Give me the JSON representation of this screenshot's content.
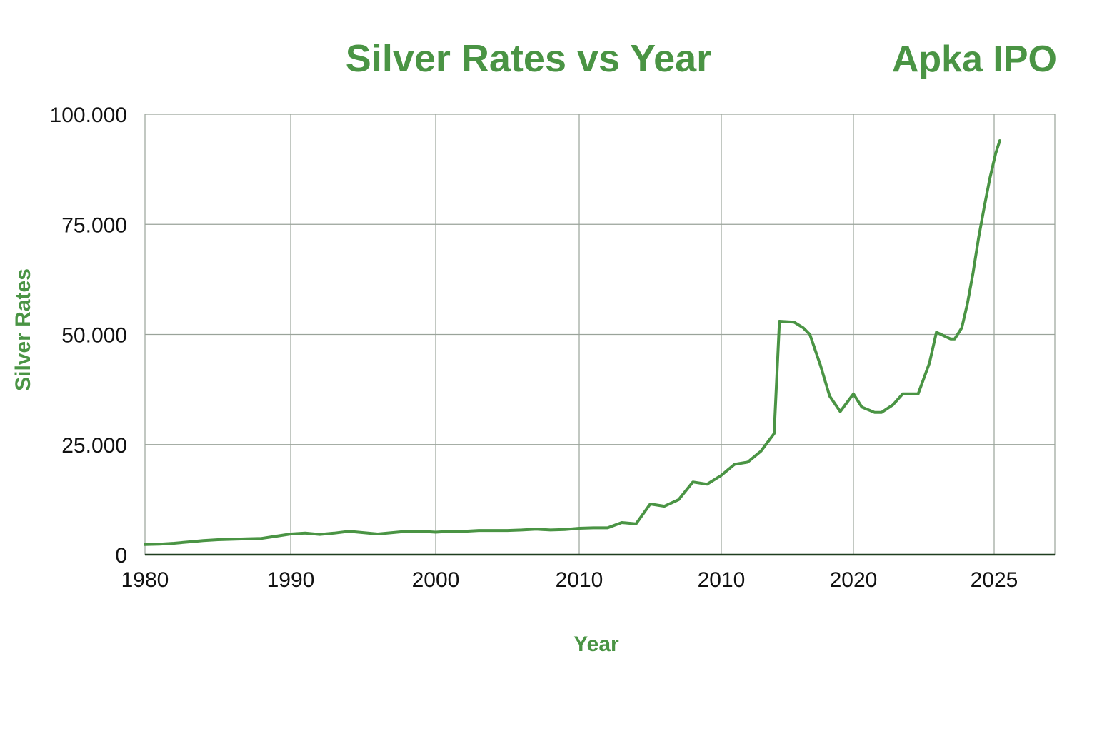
{
  "title": "Silver Rates vs Year",
  "brand": "Apka IPO",
  "colors": {
    "accent": "#4a9444",
    "line": "#4a9444",
    "grid": "#9aa39a",
    "axis": "#1f3d1f",
    "text": "#111111"
  },
  "chart_data": {
    "type": "line",
    "title": "Silver Rates vs Year",
    "xlabel": "Year",
    "ylabel": "Silver Rates",
    "x_tick_labels": [
      "1980",
      "1990",
      "2000",
      "2010",
      "2010",
      "2020",
      "2025"
    ],
    "y_tick_labels": [
      "0",
      "25.000",
      "50.000",
      "75.000",
      "100.000"
    ],
    "y_ticks": [
      0,
      25000,
      50000,
      75000,
      100000
    ],
    "ylim": [
      0,
      100000
    ],
    "grid": true,
    "legend": "none",
    "series": [
      {
        "values": [
          [
            0,
            2300
          ],
          [
            1,
            2400
          ],
          [
            2,
            2600
          ],
          [
            3,
            2900
          ],
          [
            4,
            3200
          ],
          [
            5,
            3400
          ],
          [
            6,
            3500
          ],
          [
            7,
            3600
          ],
          [
            8,
            3700
          ],
          [
            9,
            4200
          ],
          [
            10,
            4700
          ],
          [
            11,
            4900
          ],
          [
            12,
            4600
          ],
          [
            13,
            4900
          ],
          [
            14,
            5300
          ],
          [
            15,
            5000
          ],
          [
            16,
            4700
          ],
          [
            17,
            5000
          ],
          [
            18,
            5300
          ],
          [
            19,
            5300
          ],
          [
            20,
            5100
          ],
          [
            21,
            5300
          ],
          [
            22,
            5300
          ],
          [
            23,
            5500
          ],
          [
            24,
            5500
          ],
          [
            25,
            5500
          ],
          [
            26,
            5600
          ],
          [
            27,
            5800
          ],
          [
            28,
            5600
          ],
          [
            29,
            5700
          ],
          [
            30,
            6000
          ],
          [
            31,
            6100
          ],
          [
            32,
            6100
          ],
          [
            33,
            7300
          ],
          [
            34,
            7000
          ],
          [
            35,
            11500
          ],
          [
            36,
            11000
          ],
          [
            37,
            12500
          ],
          [
            38,
            16500
          ],
          [
            39,
            16000
          ],
          [
            40,
            18000
          ],
          [
            41,
            20500
          ],
          [
            42,
            21000
          ],
          [
            43,
            23500
          ],
          [
            44,
            27500
          ],
          [
            44.4,
            53000
          ],
          [
            45.5,
            52800
          ],
          [
            46.2,
            51500
          ],
          [
            46.7,
            50000
          ],
          [
            47.5,
            43000
          ],
          [
            48.2,
            36000
          ],
          [
            49,
            32500
          ],
          [
            50,
            36500
          ],
          [
            50.6,
            33500
          ],
          [
            51.5,
            32300
          ],
          [
            52,
            32300
          ],
          [
            52.8,
            34000
          ],
          [
            53.5,
            36500
          ],
          [
            54.6,
            36500
          ],
          [
            55.4,
            43500
          ],
          [
            55.9,
            50500
          ],
          [
            56.9,
            49000
          ],
          [
            57.2,
            49000
          ],
          [
            57.7,
            51500
          ],
          [
            58.1,
            57000
          ],
          [
            58.5,
            64000
          ],
          [
            58.9,
            72000
          ],
          [
            59.3,
            79000
          ],
          [
            59.7,
            85500
          ],
          [
            60.1,
            91000
          ],
          [
            60.4,
            94000
          ]
        ]
      }
    ]
  }
}
